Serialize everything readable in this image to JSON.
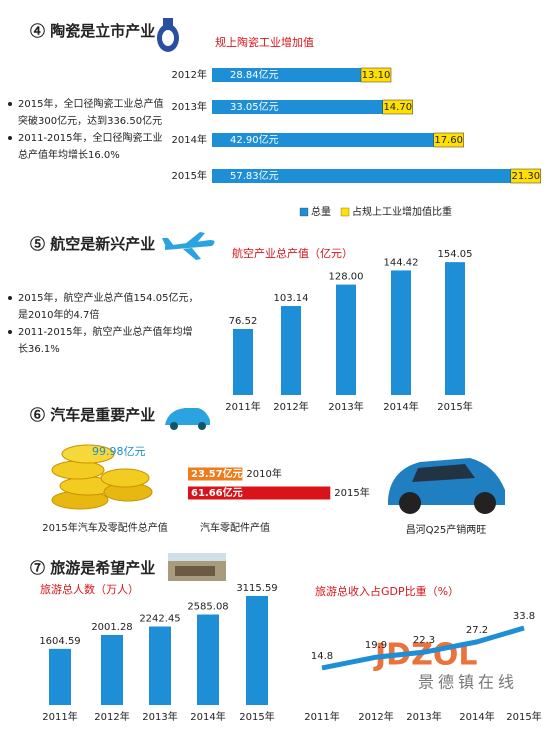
{
  "sections": [
    {
      "title": "④ 陶瓷是立市产业",
      "bullets": [
        [
          "2015年，全口径陶瓷工业总产值",
          "突破300亿元，达到336.50亿元"
        ],
        [
          "2011-2015年，全口径陶瓷工业",
          "总产值年均增长16.0%"
        ]
      ]
    },
    {
      "title": "⑤ 航空是新兴产业",
      "bullets": [
        [
          "2015年，航空产业总产值154.05亿元，",
          "是2010年的4.7倍"
        ],
        [
          "2011-2015年，航空产业总产值年均增",
          "长36.1%"
        ]
      ]
    },
    {
      "title": "⑥ 汽车是重要产业",
      "total_label": "99.98亿元",
      "total_caption": "2015年汽车及零配件总产值",
      "photo_caption": "昌河Q25产销两旺"
    },
    {
      "title": "⑦ 旅游是希望产业"
    }
  ],
  "watermark": "JDZOL",
  "watermark_sub": "景德镇在线",
  "chart_data": [
    {
      "type": "bar",
      "orientation": "horizontal",
      "title": "规上陶瓷工业增加值",
      "categories": [
        "2012年",
        "2013年",
        "2014年",
        "2015年"
      ],
      "xlim": [
        0,
        60
      ],
      "series": [
        {
          "name": "总量",
          "color": "#1e8fd6",
          "values": [
            28.84,
            33.05,
            42.9,
            57.83
          ],
          "value_labels": [
            "28.84亿元",
            "33.05亿元",
            "42.90亿元",
            "57.83亿元"
          ]
        },
        {
          "name": "占规上工业增加值比重",
          "color": "#ffe000",
          "values": [
            13.1,
            14.7,
            17.6,
            21.3
          ],
          "value_labels": [
            "13.10",
            "14.70",
            "17.60",
            "21.30"
          ]
        }
      ]
    },
    {
      "type": "bar",
      "title": "航空产业总产值（亿元）",
      "color": "#1e8fd6",
      "categories": [
        "2011年",
        "2012年",
        "2013年",
        "2014年",
        "2015年"
      ],
      "values": [
        76.52,
        103.14,
        128.0,
        144.42,
        154.05
      ],
      "value_labels": [
        "76.52",
        "103.14",
        "128.00",
        "144.42",
        "154.05"
      ],
      "ylim": [
        0,
        160
      ]
    },
    {
      "type": "bar",
      "orientation": "horizontal",
      "title": "汽车零配件产值",
      "categories": [
        "2010年",
        "2015年"
      ],
      "values": [
        23.57,
        61.66
      ],
      "value_labels": [
        "23.57亿元",
        "61.66亿元"
      ],
      "colors": [
        "#f07b1a",
        "#d8141a"
      ],
      "xlim": [
        0,
        65
      ]
    },
    {
      "type": "bar",
      "title": "旅游总人数（万人）",
      "color": "#1e8fd6",
      "categories": [
        "2011年",
        "2012年",
        "2013年",
        "2014年",
        "2015年"
      ],
      "values": [
        1604.59,
        2001.28,
        2242.45,
        2585.08,
        3115.59
      ],
      "ylim": [
        0,
        3200
      ]
    },
    {
      "type": "line",
      "title": "旅游总收入占GDP比重（%）",
      "color": "#1e8fd6",
      "categories": [
        "2011年",
        "2012年",
        "2013年",
        "2014年",
        "2015年"
      ],
      "values": [
        14.8,
        19.9,
        22.3,
        27.2,
        33.8
      ],
      "ylim": [
        0,
        50
      ]
    }
  ]
}
